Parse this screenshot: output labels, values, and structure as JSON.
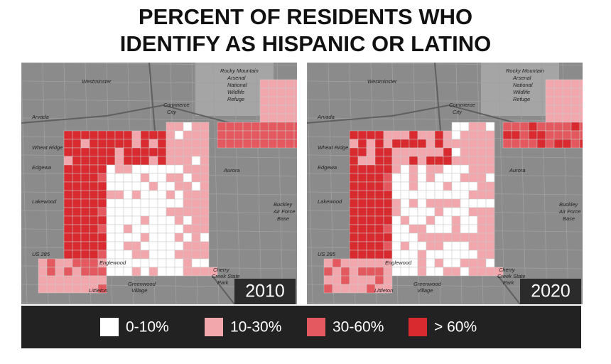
{
  "title": {
    "line1": "PERCENT OF RESIDENTS WHO",
    "line2": "IDENTIFY AS HISPANIC OR LATINO"
  },
  "maps": [
    {
      "year": "2010"
    },
    {
      "year": "2020"
    }
  ],
  "place_labels": [
    "Westminster",
    "Rocky Mountain",
    "Arsenal",
    "National",
    "Wildlife",
    "Refuge",
    "Commerce",
    "City",
    "Arvada",
    "Wheat Ridge",
    "Edgewa",
    "Aurora",
    "Lakewood",
    "Buckley",
    "Air Force",
    "Base",
    "US 285",
    "Englewood",
    "Cherry",
    "Creek State",
    "Park",
    "Greenwood",
    "Village",
    "Littleton"
  ],
  "legend": [
    {
      "label": "0-10%",
      "color": "#ffffff"
    },
    {
      "label": "10-30%",
      "color": "#f2a7ad"
    },
    {
      "label": "30-60%",
      "color": "#e4595f"
    },
    {
      "label": "> 60%",
      "color": "#d92a30"
    }
  ]
}
